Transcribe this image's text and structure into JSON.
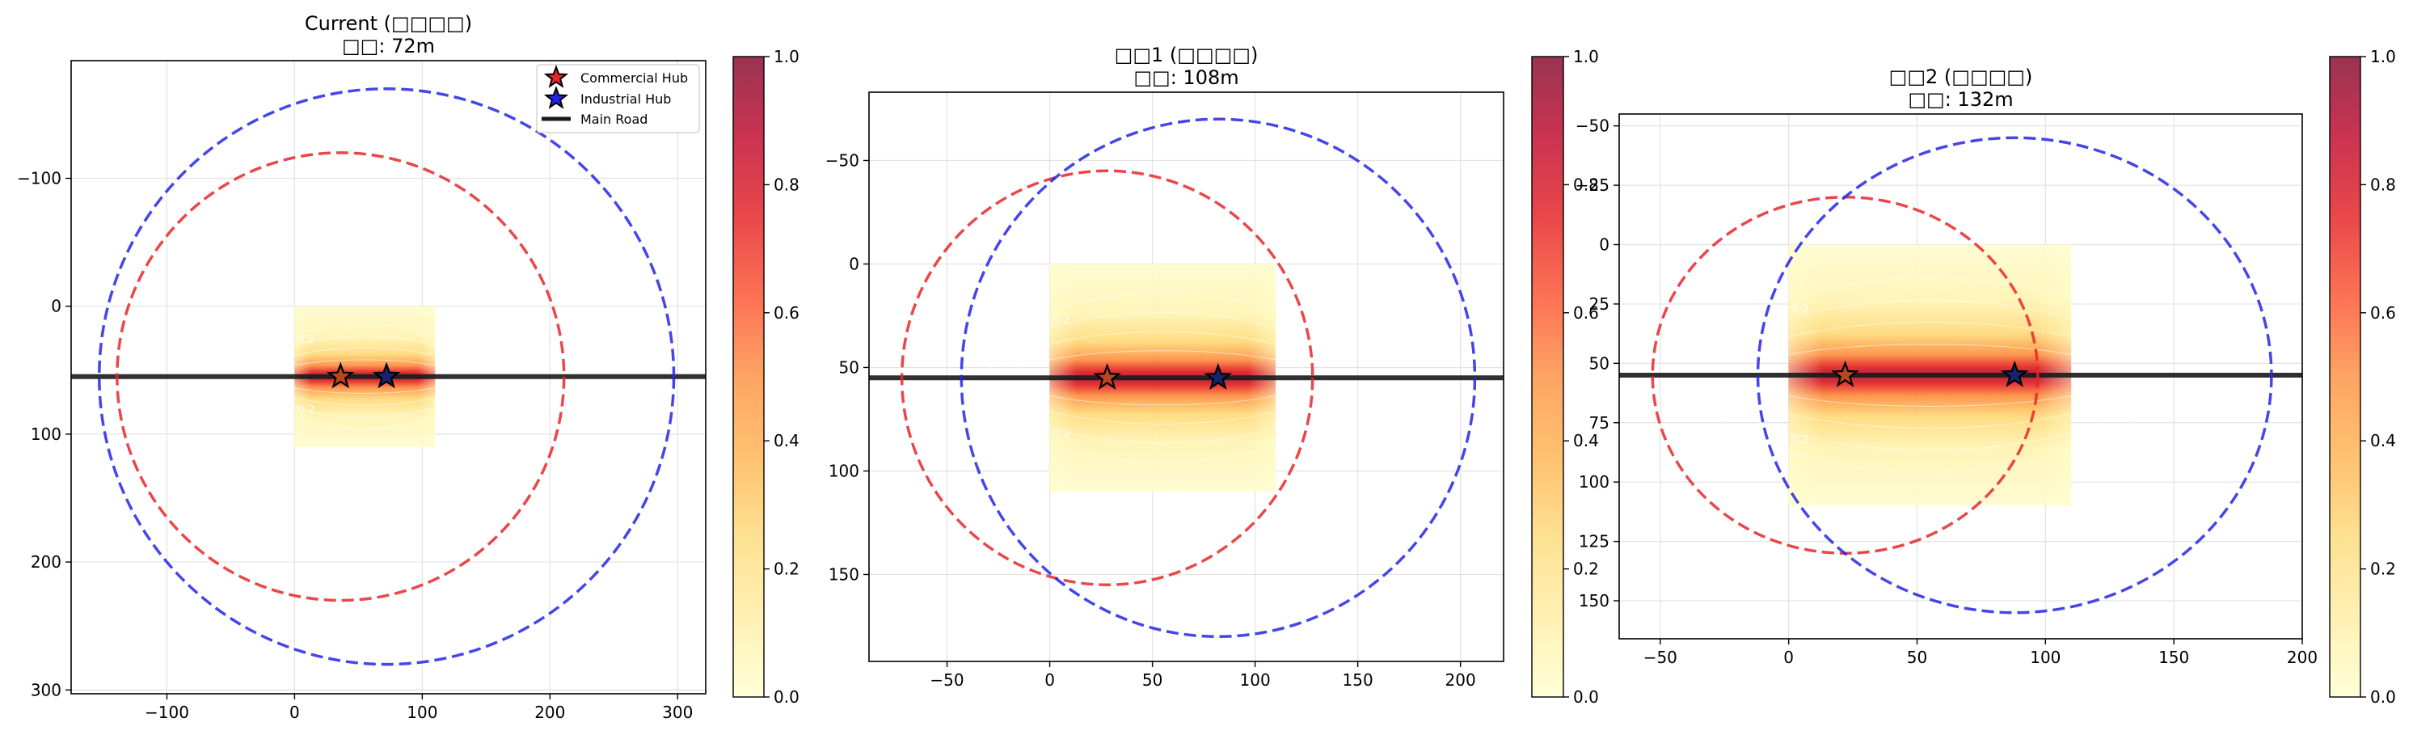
{
  "colors": {
    "commercial": "#e8262a",
    "industrial": "#2424e6",
    "road": "#1a1a1a",
    "grid": "#e3e3e3",
    "colormap": [
      "#ffffcc",
      "#ffeda0",
      "#fed976",
      "#feb24c",
      "#fd8d3c",
      "#fc4e2a",
      "#e31a1c",
      "#bd0026",
      "#800026"
    ]
  },
  "chart_data": [
    {
      "type": "heatmap",
      "title": "Current (□□□□)",
      "subtitle": "□□: 72m",
      "xlim": [
        -175,
        322
      ],
      "ylim": [
        -192,
        303
      ],
      "y_inverted": true,
      "grid": true,
      "x_ticks": [
        -100,
        0,
        100,
        200,
        300
      ],
      "y_ticks": [
        -100,
        0,
        100,
        200,
        300
      ],
      "x_tick_labels": [
        "−100",
        "0",
        "100",
        "200",
        "300"
      ],
      "y_tick_labels": [
        "−100",
        "0",
        "100",
        "200",
        "300"
      ],
      "heatmap_extent": {
        "x": [
          0,
          110
        ],
        "y": [
          0,
          110
        ]
      },
      "road_y": 55,
      "commercial_hub": [
        36,
        55
      ],
      "industrial_hub": [
        72,
        55
      ],
      "commercial_radius": 175,
      "industrial_radius": 225,
      "contour_levels": [
        0.2,
        0.4,
        0.6,
        0.8
      ],
      "contour_text": "0.2",
      "legend": {
        "position": "top-right",
        "entries": [
          "Commercial Hub",
          "Industrial Hub",
          "Main Road"
        ]
      },
      "colorbar": {
        "range": [
          0,
          1
        ],
        "ticks": [
          "0.0",
          "0.2",
          "0.4",
          "0.6",
          "0.8",
          "1.0"
        ]
      }
    },
    {
      "type": "heatmap",
      "title": "□□1 (□□□□)",
      "subtitle": "□□: 108m",
      "xlim": [
        -88,
        221
      ],
      "ylim": [
        -83,
        192
      ],
      "y_inverted": true,
      "grid": true,
      "x_ticks": [
        -50,
        0,
        50,
        100,
        150,
        200
      ],
      "y_ticks": [
        -50,
        0,
        50,
        100,
        150
      ],
      "x_tick_labels": [
        "−50",
        "0",
        "50",
        "100",
        "150",
        "200"
      ],
      "y_tick_labels": [
        "−50",
        "0",
        "50",
        "100",
        "150"
      ],
      "heatmap_extent": {
        "x": [
          0,
          110
        ],
        "y": [
          0,
          110
        ]
      },
      "road_y": 55,
      "commercial_hub": [
        28,
        55
      ],
      "industrial_hub": [
        82,
        55
      ],
      "commercial_radius": 100,
      "industrial_radius": 125,
      "contour_levels": [
        0.2,
        0.4,
        0.6,
        0.8
      ],
      "contour_text": "0.2",
      "legend": null,
      "colorbar": {
        "range": [
          0,
          1
        ],
        "ticks": [
          "0.0",
          "0.2",
          "0.4",
          "0.6",
          "0.8",
          "1.0"
        ]
      }
    },
    {
      "type": "heatmap",
      "title": "□□2 (□□□□)",
      "subtitle": "□□: 132m",
      "xlim": [
        -66,
        200
      ],
      "ylim": [
        -55,
        166
      ],
      "y_inverted": true,
      "grid": true,
      "x_ticks": [
        -50,
        0,
        50,
        100,
        150,
        200
      ],
      "y_ticks": [
        -50,
        -25,
        0,
        25,
        50,
        75,
        100,
        125,
        150
      ],
      "x_tick_labels": [
        "−50",
        "0",
        "50",
        "100",
        "150",
        "200"
      ],
      "y_tick_labels": [
        "−50",
        "−25",
        "0",
        "25",
        "50",
        "75",
        "100",
        "125",
        "150"
      ],
      "heatmap_extent": {
        "x": [
          0,
          110
        ],
        "y": [
          0,
          110
        ]
      },
      "road_y": 55,
      "commercial_hub": [
        22,
        55
      ],
      "industrial_hub": [
        88,
        55
      ],
      "commercial_radius": 75,
      "industrial_radius": 100,
      "contour_levels": [
        0.2,
        0.4,
        0.6,
        0.8
      ],
      "contour_text": "0.2",
      "legend": null,
      "colorbar": {
        "range": [
          0,
          1
        ],
        "ticks": [
          "0.0",
          "0.2",
          "0.4",
          "0.6",
          "0.8",
          "1.0"
        ]
      }
    }
  ]
}
